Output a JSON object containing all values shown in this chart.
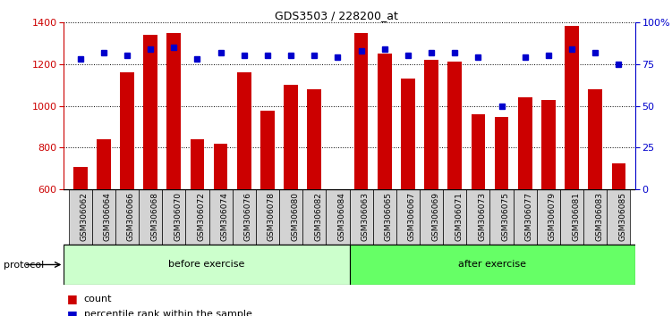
{
  "title": "GDS3503 / 228200_at",
  "categories": [
    "GSM306062",
    "GSM306064",
    "GSM306066",
    "GSM306068",
    "GSM306070",
    "GSM306072",
    "GSM306074",
    "GSM306076",
    "GSM306078",
    "GSM306080",
    "GSM306082",
    "GSM306084",
    "GSM306063",
    "GSM306065",
    "GSM306067",
    "GSM306069",
    "GSM306071",
    "GSM306073",
    "GSM306075",
    "GSM306077",
    "GSM306079",
    "GSM306081",
    "GSM306083",
    "GSM306085"
  ],
  "count_values": [
    710,
    840,
    1160,
    1340,
    1350,
    840,
    820,
    1160,
    975,
    1100,
    1080,
    600,
    1350,
    1250,
    1130,
    1220,
    1210,
    960,
    945,
    1040,
    1030,
    1380,
    1080,
    725
  ],
  "percentile_values": [
    78,
    82,
    80,
    84,
    85,
    78,
    82,
    80,
    80,
    80,
    80,
    79,
    83,
    84,
    80,
    82,
    82,
    79,
    50,
    79,
    80,
    84,
    82,
    75
  ],
  "before_exercise_count": 12,
  "after_exercise_count": 12,
  "ylim_left": [
    600,
    1400
  ],
  "ylim_right": [
    0,
    100
  ],
  "yticks_left": [
    600,
    800,
    1000,
    1200,
    1400
  ],
  "yticks_right": [
    0,
    25,
    50,
    75,
    100
  ],
  "bar_color": "#cc0000",
  "dot_color": "#0000cc",
  "before_color": "#ccffcc",
  "after_color": "#66ff66",
  "tick_bg_color": "#d3d3d3",
  "protocol_label": "protocol",
  "before_label": "before exercise",
  "after_label": "after exercise",
  "legend_count_label": "count",
  "legend_percentile_label": "percentile rank within the sample",
  "bar_bottom": 600
}
